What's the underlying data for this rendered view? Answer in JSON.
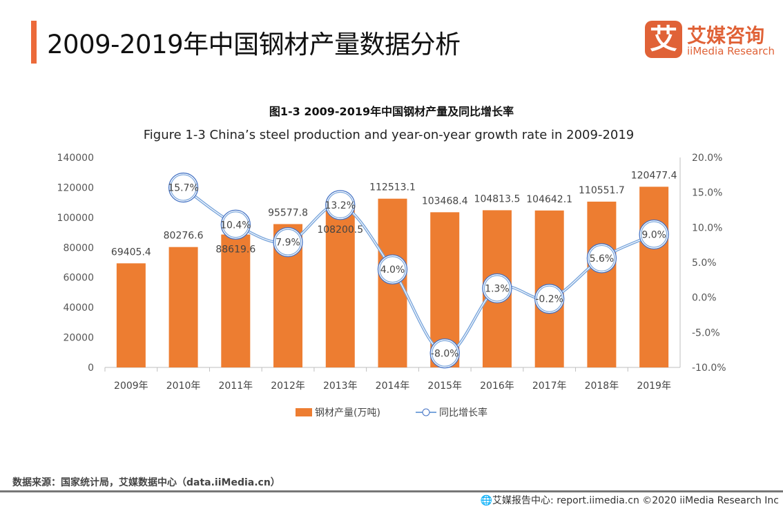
{
  "header": {
    "title": "2009-2019年中国钢材产量数据分析",
    "logo_mark": "艾",
    "logo_cn": "艾媒咨询",
    "logo_en": "iiMedia Research"
  },
  "colors": {
    "accent": "#ec6a3a",
    "bar": "#ed7d31",
    "line": "#7aa6dc",
    "circle": "#4472c4"
  },
  "chart_data": {
    "type": "bar+line",
    "title": "图1-3 2009-2019年中国钢材产量及同比增长率",
    "subtitle": "Figure 1-3 China’s steel production and year-on-year growth rate  in 2009-2019",
    "categories": [
      "2009年",
      "2010年",
      "2011年",
      "2012年",
      "2013年",
      "2014年",
      "2015年",
      "2016年",
      "2017年",
      "2018年",
      "2019年"
    ],
    "left_axis": {
      "range": [
        0,
        140000
      ],
      "ticks": [
        "0",
        "20000",
        "40000",
        "60000",
        "80000",
        "100000",
        "120000",
        "140000"
      ]
    },
    "right_axis": {
      "range": [
        -10,
        20
      ],
      "ticks": [
        "-10.0%",
        "-5.0%",
        "0.0%",
        "5.0%",
        "10.0%",
        "15.0%",
        "20.0%"
      ]
    },
    "series": [
      {
        "name": "钢材产量(万吨)",
        "type": "bar",
        "values": [
          69405.4,
          80276.6,
          88619.6,
          95577.8,
          108200.5,
          112513.1,
          103468.4,
          104813.5,
          104642.1,
          110551.7,
          120477.4
        ],
        "labels": [
          "69405.4",
          "80276.6",
          "88619.6",
          "95577.8",
          "108200.5",
          "112513.1",
          "103468.4",
          "104813.5",
          "104642.1",
          "110551.7",
          "120477.4"
        ]
      },
      {
        "name": "同比增长率",
        "type": "line",
        "values": [
          null,
          15.7,
          10.4,
          7.9,
          13.2,
          4.0,
          -8.0,
          1.3,
          -0.2,
          5.6,
          9.0
        ],
        "labels": [
          "",
          "15.7%",
          "10.4%",
          "7.9%",
          "13.2%",
          "4.0%",
          "-8.0%",
          "1.3%",
          "-0.2%",
          "5.6%",
          "9.0%"
        ]
      }
    ],
    "legend": "bottom",
    "grid": false
  },
  "footer": {
    "source": "数据来源：国家统计局，艾媒数据中心（data.iiMedia.cn）",
    "copyright": "🌐艾媒报告中心: report.iimedia.cn  ©2020  iiMedia Research Inc"
  }
}
